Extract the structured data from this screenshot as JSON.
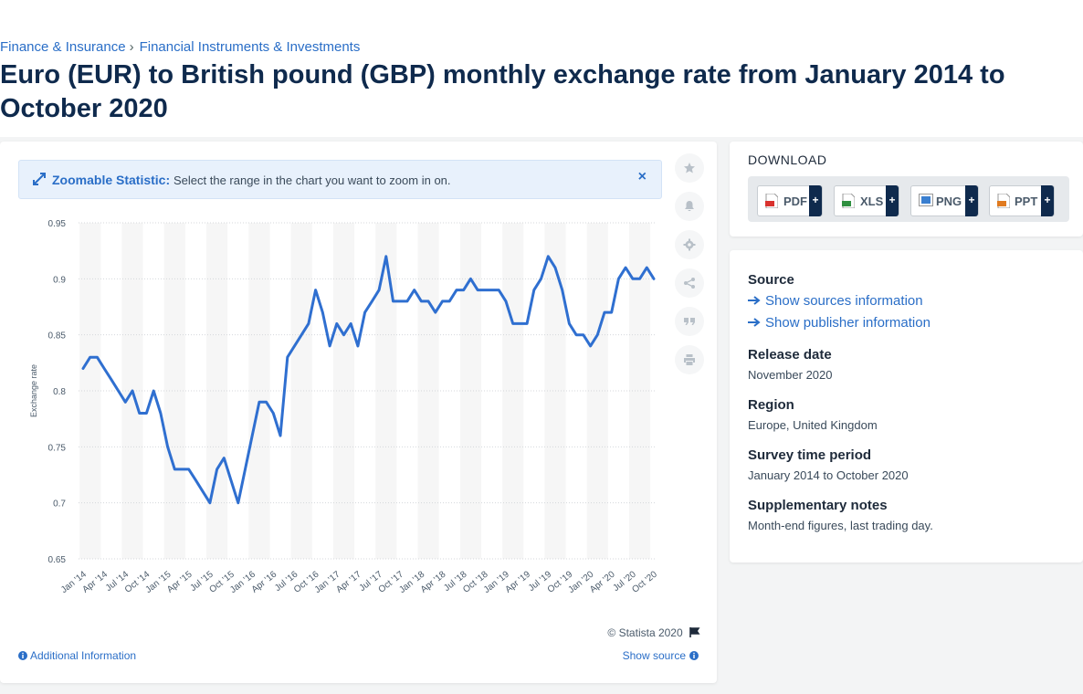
{
  "breadcrumb": {
    "item1": "Finance & Insurance",
    "item2": "Financial Instruments & Investments",
    "separator": "›"
  },
  "page_title": "Euro (EUR) to British pound (GBP) monthly exchange rate from January 2014 to October 2020",
  "zoom": {
    "title": "Zoomable Statistic:",
    "text": "Select the range in the chart you want to zoom in on.",
    "close": "×"
  },
  "footer": {
    "copyright": "© Statista 2020",
    "additional": "Additional Information",
    "show_source": "Show source"
  },
  "download": {
    "title": "DOWNLOAD",
    "buttons": [
      {
        "label": "PDF",
        "plus": "+"
      },
      {
        "label": "XLS",
        "plus": "+"
      },
      {
        "label": "PNG",
        "plus": "+"
      },
      {
        "label": "PPT",
        "plus": "+"
      }
    ]
  },
  "info": {
    "source_heading": "Source",
    "sources_link": "Show sources information",
    "publisher_link": "Show publisher information",
    "release_heading": "Release date",
    "release_value": "November 2020",
    "region_heading": "Region",
    "region_value": "Europe, United Kingdom",
    "survey_heading": "Survey time period",
    "survey_value": "January 2014 to October 2020",
    "notes_heading": "Supplementary notes",
    "notes_value": "Month-end figures, last trading day."
  },
  "colors": {
    "line": "#2f6fd0",
    "accent": "#2a6ec7",
    "title": "#0f2a4d"
  },
  "chart_data": {
    "type": "line",
    "ylabel": "Exchange rate",
    "ylim": [
      0.65,
      0.95
    ],
    "yticks": [
      "0.65",
      "0.7",
      "0.75",
      "0.8",
      "0.85",
      "0.9",
      "0.95"
    ],
    "tick_labels": [
      "Jan '14",
      "Apr '14",
      "Jul '14",
      "Oct '14",
      "Jan '15",
      "Apr '15",
      "Jul '15",
      "Oct '15",
      "Jan '16",
      "Apr '16",
      "Jul '16",
      "Oct '16",
      "Jan '17",
      "Apr '17",
      "Jul '17",
      "Oct '17",
      "Jan '18",
      "Apr '18",
      "Jul '18",
      "Oct '18",
      "Jan '19",
      "Apr '19",
      "Jul '19",
      "Oct '19",
      "Jan '20",
      "Apr '20",
      "Jul '20",
      "Oct '20"
    ],
    "grid": true,
    "series": [
      {
        "values": [
          0.82,
          0.83,
          0.83,
          0.82,
          0.81,
          0.8,
          0.79,
          0.8,
          0.78,
          0.78,
          0.8,
          0.78,
          0.75,
          0.73,
          0.73,
          0.73,
          0.72,
          0.71,
          0.7,
          0.73,
          0.74,
          0.72,
          0.7,
          0.73,
          0.76,
          0.79,
          0.79,
          0.78,
          0.76,
          0.83,
          0.84,
          0.85,
          0.86,
          0.89,
          0.87,
          0.84,
          0.86,
          0.85,
          0.86,
          0.84,
          0.87,
          0.88,
          0.89,
          0.92,
          0.88,
          0.88,
          0.88,
          0.89,
          0.88,
          0.88,
          0.87,
          0.88,
          0.88,
          0.89,
          0.89,
          0.9,
          0.89,
          0.89,
          0.89,
          0.89,
          0.88,
          0.86,
          0.86,
          0.86,
          0.89,
          0.9,
          0.92,
          0.91,
          0.89,
          0.86,
          0.85,
          0.85,
          0.84,
          0.85,
          0.87,
          0.87,
          0.9,
          0.91,
          0.9,
          0.9,
          0.91,
          0.9
        ]
      }
    ]
  }
}
